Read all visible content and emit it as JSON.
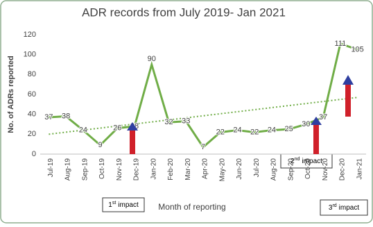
{
  "chart_data": {
    "type": "line",
    "title": "ADR records from July 2019- Jan 2021",
    "x_label": "Month of reporting",
    "y_label": "No. of ADRs reported",
    "categories": [
      "Jul-19",
      "Aug-19",
      "Sep-19",
      "Oct-19",
      "Nov-19",
      "Dec-19",
      "Jan-20",
      "Feb-20",
      "Mar-20",
      "Apr-20",
      "May-20",
      "Jun-20",
      "Jul-20",
      "Aug-20",
      "Sep-20",
      "Oct-20",
      "Nov-20",
      "Dec-20",
      "Jan-21"
    ],
    "series": [
      {
        "name": "ADRs",
        "color": "#70ad47",
        "values": [
          37,
          38,
          24,
          9,
          26,
          28,
          90,
          32,
          33,
          7,
          22,
          24,
          22,
          24,
          25,
          30,
          37,
          111,
          105
        ]
      }
    ],
    "trendline": {
      "color": "#70ad47",
      "values": [
        20,
        57
      ]
    },
    "ylim": [
      0,
      120
    ],
    "yticks": [
      0,
      20,
      40,
      60,
      80,
      100,
      120
    ],
    "grid": false,
    "annotations": [
      {
        "number": "1",
        "suffix": "st",
        "text": "impact"
      },
      {
        "number": "2",
        "suffix": "nd",
        "text": "impact"
      },
      {
        "number": "3",
        "suffix": "rd",
        "text": "impact"
      }
    ]
  }
}
